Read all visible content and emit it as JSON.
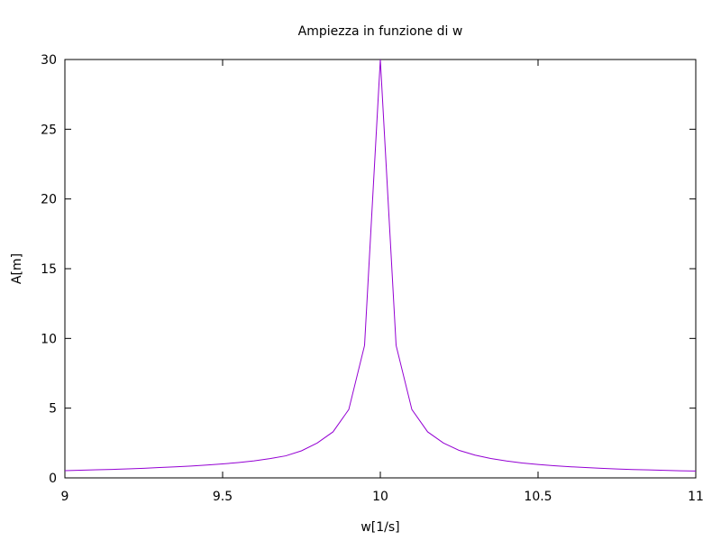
{
  "chart_data": {
    "type": "line",
    "title": "Ampiezza in funzione di w",
    "xlabel": "w[1/s]",
    "ylabel": "A[m]",
    "xlim": [
      9,
      11
    ],
    "ylim": [
      0,
      30
    ],
    "grid": false,
    "xticks": [
      9,
      9.5,
      10,
      10.5,
      11
    ],
    "xtick_labels": [
      "9",
      "9.5",
      "10",
      "10.5",
      "11"
    ],
    "yticks": [
      0,
      5,
      10,
      15,
      20,
      25,
      30
    ],
    "ytick_labels": [
      "0",
      "5",
      "10",
      "15",
      "20",
      "25",
      "30"
    ],
    "series": [
      {
        "color": "#9400d3",
        "x": [
          9.0,
          9.05,
          9.1,
          9.15,
          9.2,
          9.25,
          9.3,
          9.35,
          9.4,
          9.45,
          9.5,
          9.55,
          9.6,
          9.65,
          9.7,
          9.75,
          9.8,
          9.85,
          9.9,
          9.95,
          10.0,
          10.05,
          10.1,
          10.15,
          10.2,
          10.25,
          10.3,
          10.35,
          10.4,
          10.45,
          10.5,
          10.55,
          10.6,
          10.65,
          10.7,
          10.75,
          10.8,
          10.85,
          10.9,
          10.95,
          11.0
        ],
        "y": [
          0.52,
          0.55,
          0.58,
          0.61,
          0.65,
          0.69,
          0.74,
          0.79,
          0.85,
          0.92,
          1.0,
          1.1,
          1.22,
          1.38,
          1.58,
          1.94,
          2.5,
          3.3,
          4.9,
          9.5,
          30.0,
          9.5,
          4.9,
          3.3,
          2.5,
          1.97,
          1.63,
          1.39,
          1.21,
          1.07,
          0.96,
          0.87,
          0.8,
          0.74,
          0.69,
          0.64,
          0.6,
          0.57,
          0.54,
          0.51,
          0.49
        ]
      }
    ]
  }
}
